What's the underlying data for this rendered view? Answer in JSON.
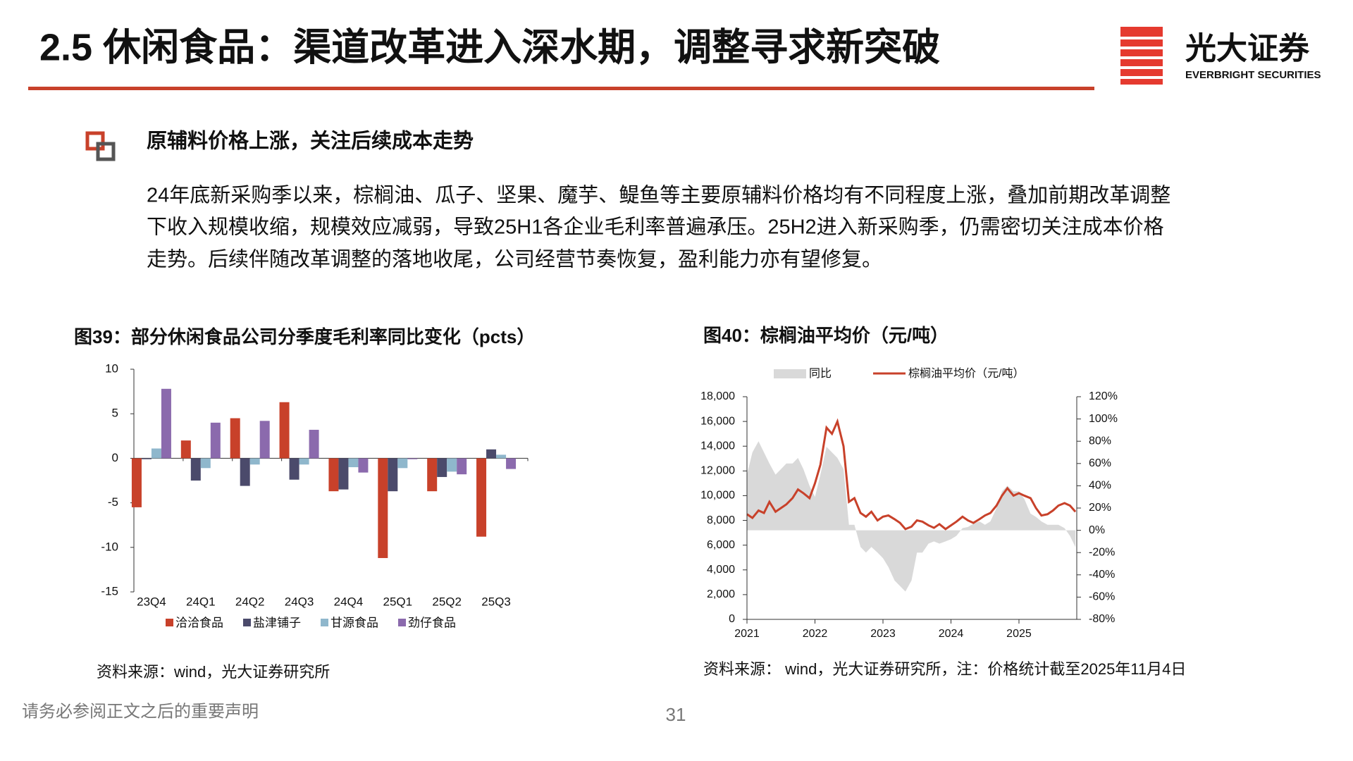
{
  "header": {
    "title": "2.5 休闲食品：渠道改革进入深水期，调整寻求新突破",
    "logo_cn": "光大证券",
    "logo_en": "EVERBRIGHT SECURITIES"
  },
  "section": {
    "heading": "原辅料价格上涨，关注后续成本走势",
    "lines": [
      "24年底新采购季以来，棕榈油、瓜子、坚果、魔芋、鳀鱼等主要原辅料价格均有不同程度上涨，叠加前期改革调整",
      "下收入规模收缩，规模效应减弱，导致25H1各企业毛利率普遍承压。25H2进入新采购季，仍需密切关注成本价格",
      "走势。后续伴随改革调整的落地收尾，公司经营节奏恢复，盈利能力亦有望修复。"
    ]
  },
  "chart_data": [
    {
      "type": "bar",
      "title": "图39：部分休闲食品公司分季度毛利率同比变化（pcts）",
      "categories": [
        "23Q4",
        "24Q1",
        "24Q2",
        "24Q3",
        "24Q4",
        "25Q1",
        "25Q2",
        "25Q3"
      ],
      "series": [
        {
          "name": "洽洽食品",
          "color": "#c8412a",
          "values": [
            -5.5,
            2.0,
            4.5,
            6.3,
            -3.7,
            -11.2,
            -3.7,
            -8.8
          ]
        },
        {
          "name": "盐津铺子",
          "color": "#4b4a6b",
          "values": [
            -0.1,
            -2.5,
            -3.1,
            -2.4,
            -3.5,
            -3.7,
            -2.1,
            1.0
          ]
        },
        {
          "name": "甘源食品",
          "color": "#8fb7cc",
          "values": [
            1.1,
            -1.1,
            -0.7,
            -0.7,
            -1.0,
            -1.1,
            -1.5,
            0.4
          ]
        },
        {
          "name": "劲仔食品",
          "color": "#8b6aad",
          "values": [
            7.8,
            4.0,
            4.2,
            3.2,
            -1.6,
            -0.1,
            -1.8,
            -1.2
          ]
        }
      ],
      "ylim": [
        -15,
        10
      ],
      "yticks": [
        -15,
        -10,
        -5,
        0,
        5,
        10
      ],
      "source": "资料来源：wind，光大证券研究所"
    },
    {
      "type": "line",
      "title": "图40：棕榈油平均价（元/吨）",
      "x": [
        2021.0,
        2021.08,
        2021.17,
        2021.25,
        2021.33,
        2021.42,
        2021.5,
        2021.58,
        2021.67,
        2021.75,
        2021.83,
        2021.92,
        2022.0,
        2022.08,
        2022.17,
        2022.25,
        2022.33,
        2022.42,
        2022.5,
        2022.58,
        2022.67,
        2022.75,
        2022.83,
        2022.92,
        2023.0,
        2023.08,
        2023.17,
        2023.25,
        2023.33,
        2023.42,
        2023.5,
        2023.58,
        2023.67,
        2023.75,
        2023.83,
        2023.92,
        2024.0,
        2024.08,
        2024.17,
        2024.25,
        2024.33,
        2024.42,
        2024.5,
        2024.58,
        2024.67,
        2024.75,
        2024.83,
        2024.92,
        2025.0,
        2025.08,
        2025.17,
        2025.25,
        2025.33,
        2025.42,
        2025.5,
        2025.58,
        2025.67,
        2025.75,
        2025.83
      ],
      "series": [
        {
          "name": "同比",
          "color": "#d9d9d9",
          "axis": "y2",
          "values": [
            50,
            70,
            80,
            70,
            60,
            50,
            55,
            60,
            60,
            65,
            55,
            40,
            30,
            50,
            75,
            70,
            65,
            55,
            5,
            5,
            -15,
            -20,
            -15,
            -20,
            -25,
            -33,
            -45,
            -50,
            -55,
            -45,
            -20,
            -20,
            -12,
            -10,
            -12,
            -10,
            -8,
            -5,
            2,
            3,
            6,
            8,
            5,
            8,
            20,
            35,
            40,
            35,
            35,
            28,
            15,
            12,
            8,
            5,
            5,
            5,
            2,
            -5,
            -15
          ]
        },
        {
          "name": "棕榈油平均价（元/吨）",
          "color": "#c8412a",
          "values": [
            8500,
            8200,
            8800,
            8600,
            9500,
            8700,
            9000,
            9300,
            9800,
            10500,
            10200,
            9800,
            11000,
            12500,
            15500,
            15000,
            16000,
            14000,
            9500,
            9800,
            8600,
            8300,
            8700,
            8000,
            8300,
            8400,
            8100,
            7800,
            7300,
            7500,
            8000,
            7900,
            7600,
            7400,
            7700,
            7300,
            7600,
            7900,
            8300,
            8000,
            7800,
            8100,
            8400,
            8600,
            9200,
            10000,
            10600,
            10000,
            10200,
            10000,
            9800,
            9000,
            8400,
            8500,
            8800,
            9200,
            9400,
            9200,
            8700
          ]
        }
      ],
      "xlim": [
        2021,
        2025.85
      ],
      "xticks": [
        2021,
        2022,
        2023,
        2024,
        2025
      ],
      "ylim": [
        0,
        18000
      ],
      "yticks": [
        0,
        {
          "value": 2000,
          "label": "2,000"
        },
        {
          "value": 4000,
          "label": "4,000"
        },
        {
          "value": 6000,
          "label": "6,000"
        },
        {
          "value": 8000,
          "label": "8,000"
        },
        {
          "value": 10000,
          "label": "10,000"
        },
        {
          "value": 12000,
          "label": "12,000"
        },
        {
          "value": 14000,
          "label": "14,000"
        },
        {
          "value": 16000,
          "label": "16,000"
        },
        {
          "value": 18000,
          "label": "18,000"
        }
      ],
      "y2lim": [
        -80,
        120
      ],
      "y2ticks": [
        {
          "value": -80,
          "label": "-80%"
        },
        {
          "value": -60,
          "label": "-60%"
        },
        {
          "value": -40,
          "label": "-40%"
        },
        {
          "value": -20,
          "label": "-20%"
        },
        {
          "value": 0,
          "label": "0%"
        },
        {
          "value": 20,
          "label": "20%"
        },
        {
          "value": 40,
          "label": "40%"
        },
        {
          "value": 60,
          "label": "60%"
        },
        {
          "value": 80,
          "label": "80%"
        },
        {
          "value": 100,
          "label": "100%"
        },
        {
          "value": 120,
          "label": "120%"
        }
      ],
      "source": "资料来源： wind，光大证券研究所，注：价格统计截至2025年11月4日"
    }
  ],
  "footer": {
    "disclaimer": "请务必参阅正文之后的重要声明",
    "page": "31"
  }
}
